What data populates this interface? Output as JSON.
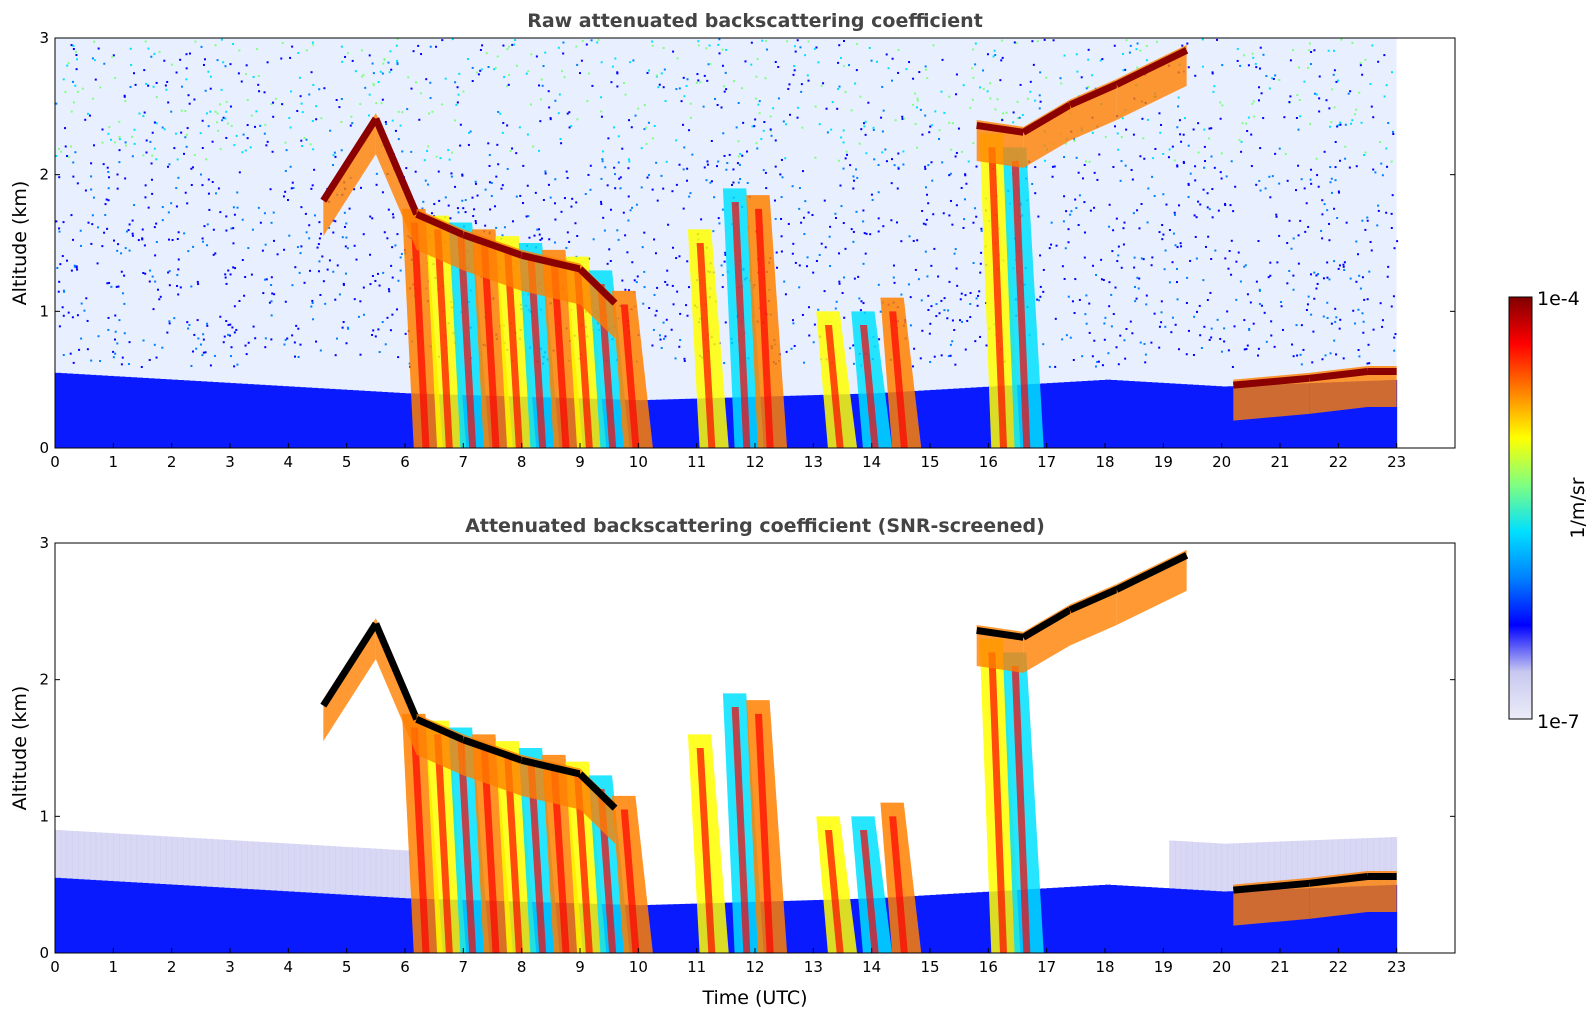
{
  "chart_data": [
    {
      "type": "heatmap",
      "title": "Raw attenuated backscattering coefficient",
      "xlabel": "",
      "ylabel": "Altitude (km)",
      "xlim": [
        0,
        24
      ],
      "ylim": [
        0,
        3
      ],
      "xticks": [
        0,
        1,
        2,
        3,
        4,
        5,
        6,
        7,
        8,
        9,
        10,
        11,
        12,
        13,
        14,
        15,
        16,
        17,
        18,
        19,
        20,
        21,
        22,
        23
      ],
      "yticks": [
        0,
        1,
        2,
        3
      ],
      "data_end_hour": 23,
      "screened": false
    },
    {
      "type": "heatmap",
      "title": "Attenuated backscattering coefficient (SNR-screened)",
      "xlabel": "Time (UTC)",
      "ylabel": "Altitude (km)",
      "xlim": [
        0,
        24
      ],
      "ylim": [
        0,
        3
      ],
      "xticks": [
        0,
        1,
        2,
        3,
        4,
        5,
        6,
        7,
        8,
        9,
        10,
        11,
        12,
        13,
        14,
        15,
        16,
        17,
        18,
        19,
        20,
        21,
        22,
        23
      ],
      "yticks": [
        0,
        1,
        2,
        3
      ],
      "data_end_hour": 23,
      "screened": true
    }
  ],
  "colorbar": {
    "label": "1/m/sr",
    "min_label": "1e-7",
    "max_label": "1e-4",
    "scale": "log",
    "colormap": "jet",
    "colors": [
      "#ececf8",
      "#c8c8f0",
      "#0000ff",
      "#0080ff",
      "#00e0ff",
      "#80ff80",
      "#ffff00",
      "#ff8000",
      "#ff0000",
      "#800000"
    ]
  },
  "cloud_features": {
    "boundary_layer_top_km": [
      [
        0,
        0.55
      ],
      [
        2,
        0.5
      ],
      [
        4,
        0.45
      ],
      [
        6,
        0.4
      ],
      [
        10,
        0.35
      ],
      [
        14,
        0.4
      ],
      [
        16,
        0.45
      ],
      [
        18,
        0.5
      ],
      [
        20,
        0.45
      ],
      [
        23,
        0.5
      ]
    ],
    "descending_cloud_top_km": [
      [
        4.6,
        1.85
      ],
      [
        5.5,
        2.45
      ],
      [
        6.2,
        1.75
      ],
      [
        7,
        1.6
      ],
      [
        8,
        1.45
      ],
      [
        9,
        1.35
      ],
      [
        9.6,
        1.1
      ]
    ],
    "late_cloud_top_km": [
      [
        15.8,
        2.4
      ],
      [
        16.6,
        2.35
      ],
      [
        17.4,
        2.55
      ],
      [
        18.2,
        2.7
      ],
      [
        19.4,
        2.95
      ]
    ],
    "low_cloud_top_km": [
      [
        20.2,
        0.5
      ],
      [
        21.5,
        0.55
      ],
      [
        22.5,
        0.6
      ],
      [
        23,
        0.6
      ]
    ]
  }
}
